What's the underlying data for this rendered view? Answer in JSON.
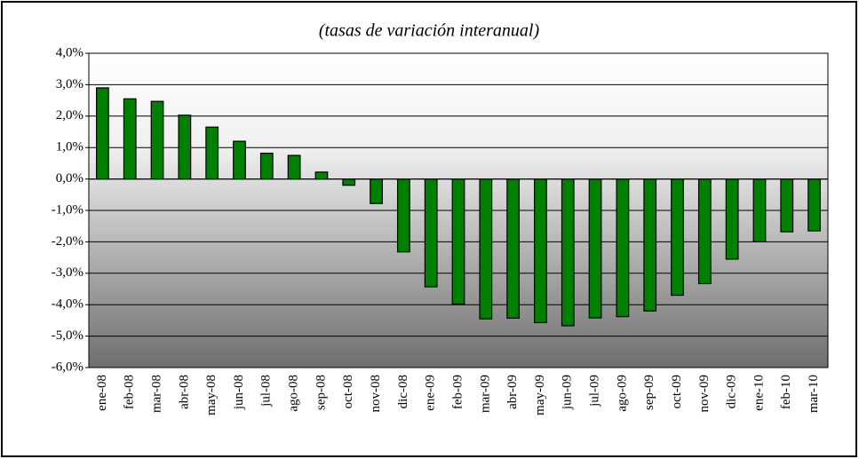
{
  "chart_data": {
    "type": "bar",
    "title": "(tasas de variación interanual)",
    "categories": [
      "ene-08",
      "feb-08",
      "mar-08",
      "abr-08",
      "may-08",
      "jun-08",
      "jul-08",
      "ago-08",
      "sep-08",
      "oct-08",
      "nov-08",
      "dic-08",
      "ene-09",
      "feb-09",
      "mar-09",
      "abr-09",
      "may-09",
      "jun-09",
      "jul-09",
      "ago-09",
      "sep-09",
      "oct-09",
      "nov-09",
      "dic-09",
      "ene-10",
      "feb-10",
      "mar-10"
    ],
    "values": [
      2.9,
      2.55,
      2.47,
      2.03,
      1.65,
      1.2,
      0.82,
      0.75,
      0.22,
      -0.2,
      -0.78,
      -2.32,
      -3.43,
      -3.98,
      -4.45,
      -4.43,
      -4.57,
      -4.67,
      -4.42,
      -4.38,
      -4.2,
      -3.7,
      -3.33,
      -2.55,
      -2.0,
      -1.68,
      -1.65
    ],
    "color": "#008000",
    "ylim": [
      -6,
      4
    ],
    "yticks": [
      {
        "value": -6,
        "label": "-6,0%"
      },
      {
        "value": -5,
        "label": "-5,0%"
      },
      {
        "value": -4,
        "label": "-4,0%"
      },
      {
        "value": -3,
        "label": "-3,0%"
      },
      {
        "value": -2,
        "label": "-2,0%"
      },
      {
        "value": -1,
        "label": "-1,0%"
      },
      {
        "value": 0,
        "label": "0,0%"
      },
      {
        "value": 1,
        "label": "1,0%"
      },
      {
        "value": 2,
        "label": "2,0%"
      },
      {
        "value": 3,
        "label": "3,0%"
      },
      {
        "value": 4,
        "label": "4,0%"
      }
    ],
    "grid": true
  }
}
